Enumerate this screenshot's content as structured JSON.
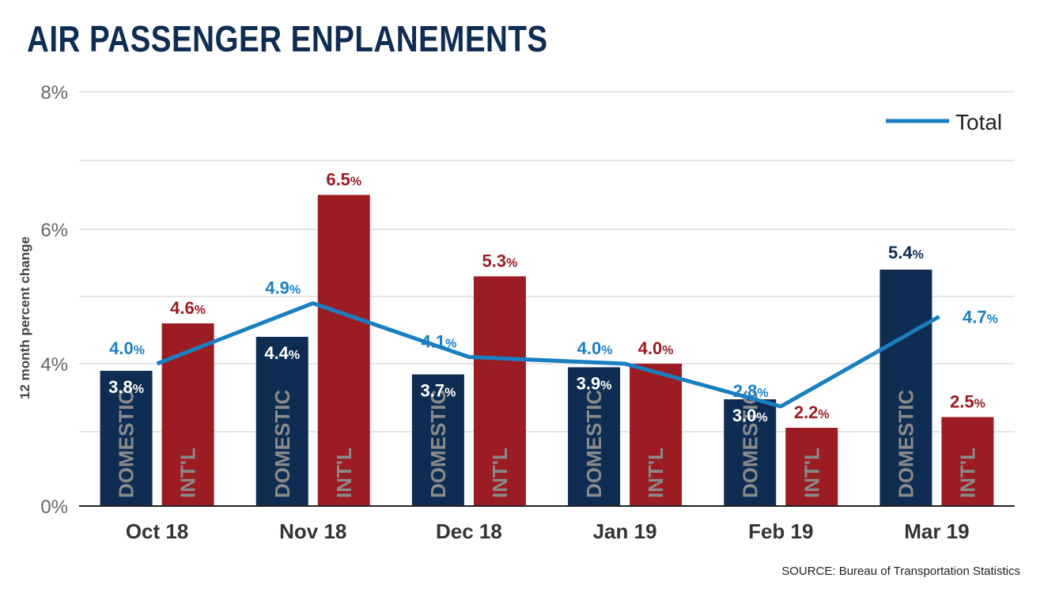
{
  "title": "AIR PASSENGER ENPLANEMENTS",
  "source": "SOURCE: Bureau of Transportation Statistics",
  "colors": {
    "domestic": "#0f2d52",
    "intl": "#9b1c23",
    "total": "#1a7fc1",
    "grid": "#cccccc"
  },
  "chart_data": {
    "type": "bar",
    "ylabel": "12 month percent change",
    "ylim": [
      0,
      8
    ],
    "yticks": [
      "0%",
      "4%",
      "6%",
      "8%"
    ],
    "grid": true,
    "legend": "top-right",
    "categories": [
      "Oct 18",
      "Nov 18",
      "Dec 18",
      "Jan 19",
      "Feb 19",
      "Mar 19"
    ],
    "series": [
      {
        "name": "DOMESTIC",
        "kind": "bar",
        "values": [
          3.8,
          4.4,
          3.7,
          3.9,
          3.0,
          5.4
        ]
      },
      {
        "name": "INT'L",
        "kind": "bar",
        "values": [
          4.6,
          6.5,
          5.3,
          4.0,
          2.2,
          2.5
        ]
      },
      {
        "name": "Total",
        "kind": "line",
        "values": [
          4.0,
          4.9,
          4.1,
          4.0,
          2.8,
          4.7
        ]
      }
    ],
    "percent_suffix": "%"
  }
}
